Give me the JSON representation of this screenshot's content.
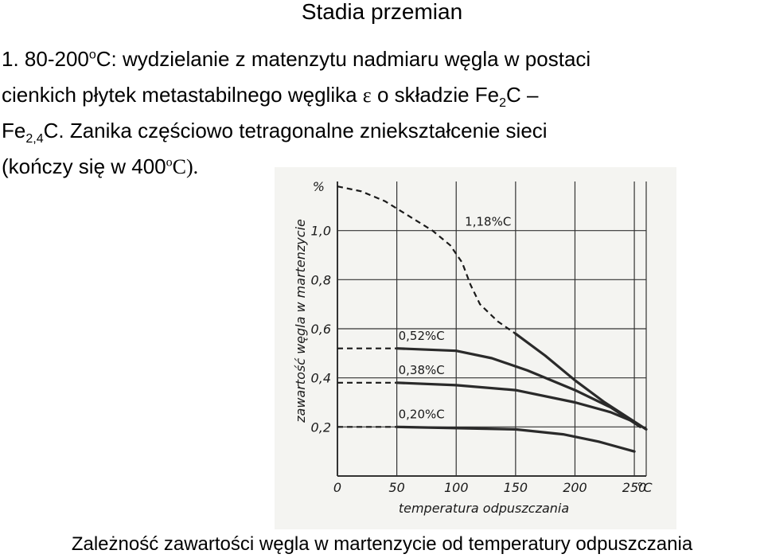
{
  "title": "Stadia przemian",
  "paragraph": {
    "l1a": "1. 80-200",
    "l1_sup": "o",
    "l1b": "C: wydzielanie z matenzytu nadmiaru węgla w postaci",
    "l2a": "cienkich płytek metastabilnego węglika ",
    "l2_eps": "ε",
    "l2b": " o składzie Fe",
    "l2_sub": "2",
    "l2c": "C –",
    "l3a": "Fe",
    "l3_sub": "2,4",
    "l3b": "C. Zanika częściowo tetragonalne zniekształcenie sieci",
    "l4a": "(kończy się w 400",
    "l4_sup": "o",
    "l4b": "C)."
  },
  "caption": "Zależność zawartości węgla w martenzycie od temperatury odpuszczania",
  "chart_data": {
    "type": "line",
    "xlabel": "temperatura odpuszczania",
    "ylabel": "zawartość węgla w martenzycie",
    "x_unit": "°C",
    "y_unit": "%",
    "xlim": [
      0,
      260
    ],
    "ylim": [
      0,
      1.2
    ],
    "x_ticks": [
      0,
      50,
      100,
      150,
      200,
      250
    ],
    "y_ticks": [
      0.2,
      0.4,
      0.6,
      0.8,
      1.0
    ],
    "y_tick_labels": [
      "0,2",
      "0,4",
      "0,6",
      "0,8",
      "1,0"
    ],
    "grid": true,
    "series": [
      {
        "name": "1,18%C",
        "dashed": [
          [
            0,
            1.18
          ],
          [
            20,
            1.16
          ],
          [
            40,
            1.12
          ],
          [
            60,
            1.06
          ],
          [
            80,
            1.0
          ],
          [
            95,
            0.94
          ],
          [
            105,
            0.87
          ],
          [
            112,
            0.78
          ],
          [
            120,
            0.7
          ],
          [
            135,
            0.63
          ],
          [
            150,
            0.58
          ]
        ],
        "solid": [
          [
            150,
            0.58
          ],
          [
            175,
            0.49
          ],
          [
            200,
            0.39
          ],
          [
            225,
            0.3
          ],
          [
            260,
            0.19
          ]
        ]
      },
      {
        "name": "0,52%C",
        "dashed": [
          [
            0,
            0.52
          ],
          [
            50,
            0.52
          ]
        ],
        "solid": [
          [
            50,
            0.52
          ],
          [
            100,
            0.51
          ],
          [
            130,
            0.48
          ],
          [
            160,
            0.43
          ],
          [
            200,
            0.35
          ],
          [
            230,
            0.28
          ],
          [
            255,
            0.2
          ]
        ]
      },
      {
        "name": "0,38%C",
        "dashed": [
          [
            0,
            0.38
          ],
          [
            50,
            0.38
          ]
        ],
        "solid": [
          [
            50,
            0.38
          ],
          [
            100,
            0.37
          ],
          [
            150,
            0.35
          ],
          [
            200,
            0.3
          ],
          [
            230,
            0.26
          ],
          [
            250,
            0.22
          ]
        ]
      },
      {
        "name": "0,20%C",
        "dashed": [
          [
            0,
            0.2
          ],
          [
            50,
            0.2
          ]
        ],
        "solid": [
          [
            50,
            0.2
          ],
          [
            150,
            0.19
          ],
          [
            190,
            0.17
          ],
          [
            220,
            0.14
          ],
          [
            250,
            0.1
          ]
        ]
      }
    ]
  }
}
